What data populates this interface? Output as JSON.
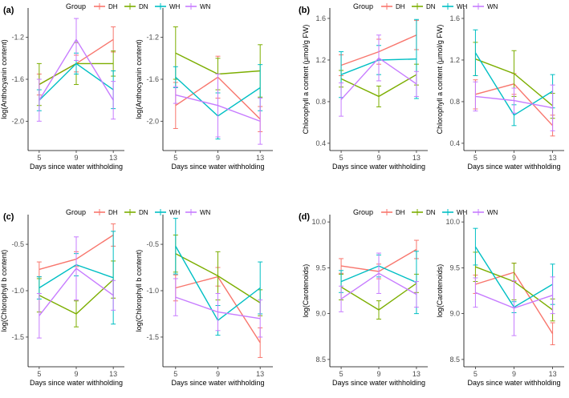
{
  "colors": {
    "DH": "#F8766D",
    "DN": "#7CAE00",
    "WH": "#00BFC4",
    "WN": "#C77CFF"
  },
  "chart_data": [
    {
      "panel": "(a)",
      "type": "line",
      "legend_title": "Group",
      "legend_labels": [
        "DH",
        "DN",
        "WH",
        "WN"
      ],
      "subplots": [
        {
          "x": [
            5,
            9,
            13
          ],
          "xticks": [
            "5",
            "9",
            "13"
          ],
          "xlim": [
            3.8,
            14.2
          ],
          "ylim": [
            -2.28,
            -0.92
          ],
          "yticks": [
            -1.2,
            -1.6,
            -2.0
          ],
          "ytick_labels": [
            "-1.2",
            "-1.6",
            "-2.0"
          ],
          "xlabel": "Days since water withholding",
          "ylabel": "log(Anthocyanin content)",
          "series": [
            {
              "name": "DH",
              "values": [
                -1.65,
                -1.45,
                -1.22
              ],
              "err": [
                0.1,
                0.08,
                0.12
              ]
            },
            {
              "name": "DN",
              "values": [
                -1.65,
                -1.45,
                -1.45
              ],
              "err": [
                0.2,
                0.2,
                0.12
              ]
            },
            {
              "name": "WH",
              "values": [
                -1.8,
                -1.45,
                -1.7
              ],
              "err": [
                0.1,
                0.1,
                0.18
              ]
            },
            {
              "name": "WN",
              "values": [
                -1.8,
                -1.22,
                -1.8
              ],
              "err": [
                0.2,
                0.2,
                0.18
              ]
            }
          ]
        },
        {
          "x": [
            5,
            9,
            13
          ],
          "xticks": [
            "5",
            "9",
            "13"
          ],
          "xlim": [
            3.8,
            14.2
          ],
          "ylim": [
            -2.28,
            -0.92
          ],
          "yticks": [
            -1.2,
            -1.6,
            -2.0
          ],
          "ytick_labels": [
            "-1.2",
            "-1.6",
            "-2.0"
          ],
          "xlabel": "Days since water withholding",
          "ylabel": "log(Anthocyanin content)",
          "series": [
            {
              "name": "DH",
              "values": [
                -1.85,
                -1.58,
                -1.98
              ],
              "err": [
                0.22,
                0.2,
                0.12
              ]
            },
            {
              "name": "DN",
              "values": [
                -1.35,
                -1.55,
                -1.52
              ],
              "err": [
                0.25,
                0.15,
                0.25
              ]
            },
            {
              "name": "WH",
              "values": [
                -1.58,
                -1.95,
                -1.68
              ],
              "err": [
                0.1,
                0.22,
                0.22
              ]
            },
            {
              "name": "WN",
              "values": [
                -1.75,
                -1.85,
                -2.0
              ],
              "err": [
                0.08,
                0.3,
                0.22
              ]
            }
          ]
        }
      ]
    },
    {
      "panel": "(b)",
      "type": "line",
      "legend_title": "Group",
      "legend_labels": [
        "DH",
        "DN",
        "WH",
        "WN"
      ],
      "subplots": [
        {
          "x": [
            5,
            9,
            13
          ],
          "xticks": [
            "5",
            "9",
            "13"
          ],
          "xlim": [
            3.8,
            14.2
          ],
          "ylim": [
            0.33,
            1.7
          ],
          "yticks": [
            0.4,
            0.8,
            1.2,
            1.6
          ],
          "ytick_labels": [
            "0.4",
            "0.8",
            "1.2",
            "1.6"
          ],
          "xlabel": "Days since water withholding",
          "ylabel": "Chlorophyll a content (μmol/g FW)",
          "series": [
            {
              "name": "DH",
              "values": [
                1.15,
                1.28,
                1.44
              ],
              "err": [
                0.1,
                0.12,
                0.14
              ]
            },
            {
              "name": "DN",
              "values": [
                1.02,
                0.85,
                1.06
              ],
              "err": [
                0.08,
                0.1,
                0.1
              ]
            },
            {
              "name": "WH",
              "values": [
                1.06,
                1.2,
                1.21
              ],
              "err": [
                0.22,
                0.14,
                0.38
              ]
            },
            {
              "name": "WN",
              "values": [
                0.82,
                1.22,
                0.97
              ],
              "err": [
                0.16,
                0.22,
                0.12
              ]
            }
          ]
        },
        {
          "x": [
            5,
            9,
            13
          ],
          "xticks": [
            "5",
            "9",
            "13"
          ],
          "xlim": [
            3.8,
            14.2
          ],
          "ylim": [
            0.33,
            1.7
          ],
          "yticks": [
            0.4,
            0.8,
            1.2,
            1.6
          ],
          "ytick_labels": [
            "0.4",
            "0.8",
            "1.2",
            "1.6"
          ],
          "xlabel": "Days since water withholding",
          "ylabel": "Chlorophyll a content (μmol/g FW)",
          "series": [
            {
              "name": "DH",
              "values": [
                0.87,
                0.97,
                0.57
              ],
              "err": [
                0.14,
                0.1,
                0.1
              ]
            },
            {
              "name": "DN",
              "values": [
                1.21,
                1.07,
                0.76
              ],
              "err": [
                0.16,
                0.22,
                0.12
              ]
            },
            {
              "name": "WH",
              "values": [
                1.27,
                0.67,
                0.9
              ],
              "err": [
                0.22,
                0.1,
                0.16
              ]
            },
            {
              "name": "WN",
              "values": [
                0.85,
                0.81,
                0.74
              ],
              "err": [
                0.14,
                0.12,
                0.22
              ]
            }
          ]
        }
      ]
    },
    {
      "panel": "(c)",
      "type": "line",
      "legend_title": "Group",
      "legend_labels": [
        "DH",
        "DN",
        "WH",
        "WN"
      ],
      "subplots": [
        {
          "x": [
            5,
            9,
            13
          ],
          "xticks": [
            "5",
            "9",
            "13"
          ],
          "xlim": [
            3.8,
            14.2
          ],
          "ylim": [
            -1.82,
            -0.18
          ],
          "yticks": [
            -0.5,
            -1.0,
            -1.5
          ],
          "ytick_labels": [
            "-0.5",
            "-1.0",
            "-1.5"
          ],
          "xlabel": "Days since water withholding",
          "ylabel": "log(Chlorophyll b content)",
          "series": [
            {
              "name": "DH",
              "values": [
                -0.77,
                -0.66,
                -0.4
              ],
              "err": [
                0.08,
                0.08,
                0.12
              ]
            },
            {
              "name": "DN",
              "values": [
                -1.05,
                -1.25,
                -0.88
              ],
              "err": [
                0.18,
                0.14,
                0.2
              ]
            },
            {
              "name": "WH",
              "values": [
                -0.97,
                -0.72,
                -0.86
              ],
              "err": [
                0.12,
                0.12,
                0.5
              ]
            },
            {
              "name": "WN",
              "values": [
                -1.27,
                -0.76,
                -1.05
              ],
              "err": [
                0.24,
                0.34,
                0.16
              ]
            }
          ]
        },
        {
          "x": [
            5,
            9,
            13
          ],
          "xticks": [
            "5",
            "9",
            "13"
          ],
          "xlim": [
            3.8,
            14.2
          ],
          "ylim": [
            -1.82,
            -0.18
          ],
          "yticks": [
            -0.5,
            -1.0,
            -1.5
          ],
          "ytick_labels": [
            "-0.5",
            "-1.0",
            "-1.5"
          ],
          "xlabel": "Days since water withholding",
          "ylabel": "log(Chlorophyll b content)",
          "series": [
            {
              "name": "DH",
              "values": [
                -0.97,
                -0.85,
                -1.56
              ],
              "err": [
                0.14,
                0.1,
                0.16
              ]
            },
            {
              "name": "DN",
              "values": [
                -0.6,
                -0.84,
                -1.13
              ],
              "err": [
                0.2,
                0.26,
                0.14
              ]
            },
            {
              "name": "WH",
              "values": [
                -0.52,
                -1.32,
                -0.97
              ],
              "err": [
                0.3,
                0.16,
                0.28
              ]
            },
            {
              "name": "WN",
              "values": [
                -1.07,
                -1.23,
                -1.3
              ],
              "err": [
                0.2,
                0.2,
                0.2
              ]
            }
          ]
        }
      ]
    },
    {
      "panel": "(d)",
      "type": "line",
      "legend_title": "Group",
      "legend_labels": [
        "DH",
        "DN",
        "WH",
        "WN"
      ],
      "subplots": [
        {
          "x": [
            5,
            9,
            13
          ],
          "xticks": [
            "5",
            "9",
            "13"
          ],
          "xlim": [
            3.8,
            14.2
          ],
          "ylim": [
            8.42,
            10.08
          ],
          "yticks": [
            10.0,
            9.5,
            9.0,
            8.5
          ],
          "ytick_labels": [
            "10.0",
            "9.5",
            "9.0",
            "8.5"
          ],
          "xlabel": "Days since water withholding",
          "ylabel": "log(Carotenoids)",
          "series": [
            {
              "name": "DH",
              "values": [
                9.52,
                9.46,
                9.7
              ],
              "err": [
                0.08,
                0.08,
                0.1
              ]
            },
            {
              "name": "DN",
              "values": [
                9.29,
                9.04,
                9.33
              ],
              "err": [
                0.14,
                0.1,
                0.1
              ]
            },
            {
              "name": "WH",
              "values": [
                9.35,
                9.52,
                9.34
              ],
              "err": [
                0.12,
                0.12,
                0.34
              ]
            },
            {
              "name": "WN",
              "values": [
                9.16,
                9.44,
                9.21
              ],
              "err": [
                0.14,
                0.22,
                0.14
              ]
            }
          ]
        },
        {
          "x": [
            5,
            9,
            13
          ],
          "xticks": [
            "5",
            "9",
            "13"
          ],
          "xlim": [
            3.8,
            14.2
          ],
          "ylim": [
            8.42,
            10.08
          ],
          "yticks": [
            10.0,
            9.5,
            9.0,
            8.5
          ],
          "ytick_labels": [
            "10.0",
            "9.5",
            "9.0",
            "8.5"
          ],
          "xlabel": "Days since water withholding",
          "ylabel": "log(Carotenoids)",
          "series": [
            {
              "name": "DH",
              "values": [
                9.32,
                9.45,
                8.78
              ],
              "err": [
                0.1,
                0.1,
                0.12
              ]
            },
            {
              "name": "DN",
              "values": [
                9.51,
                9.35,
                9.04
              ],
              "err": [
                0.16,
                0.2,
                0.12
              ]
            },
            {
              "name": "WH",
              "values": [
                9.73,
                9.07,
                9.32
              ],
              "err": [
                0.2,
                0.06,
                0.22
              ]
            },
            {
              "name": "WN",
              "values": [
                9.23,
                9.06,
                9.2
              ],
              "err": [
                0.16,
                0.3,
                0.2
              ]
            }
          ]
        }
      ]
    }
  ]
}
